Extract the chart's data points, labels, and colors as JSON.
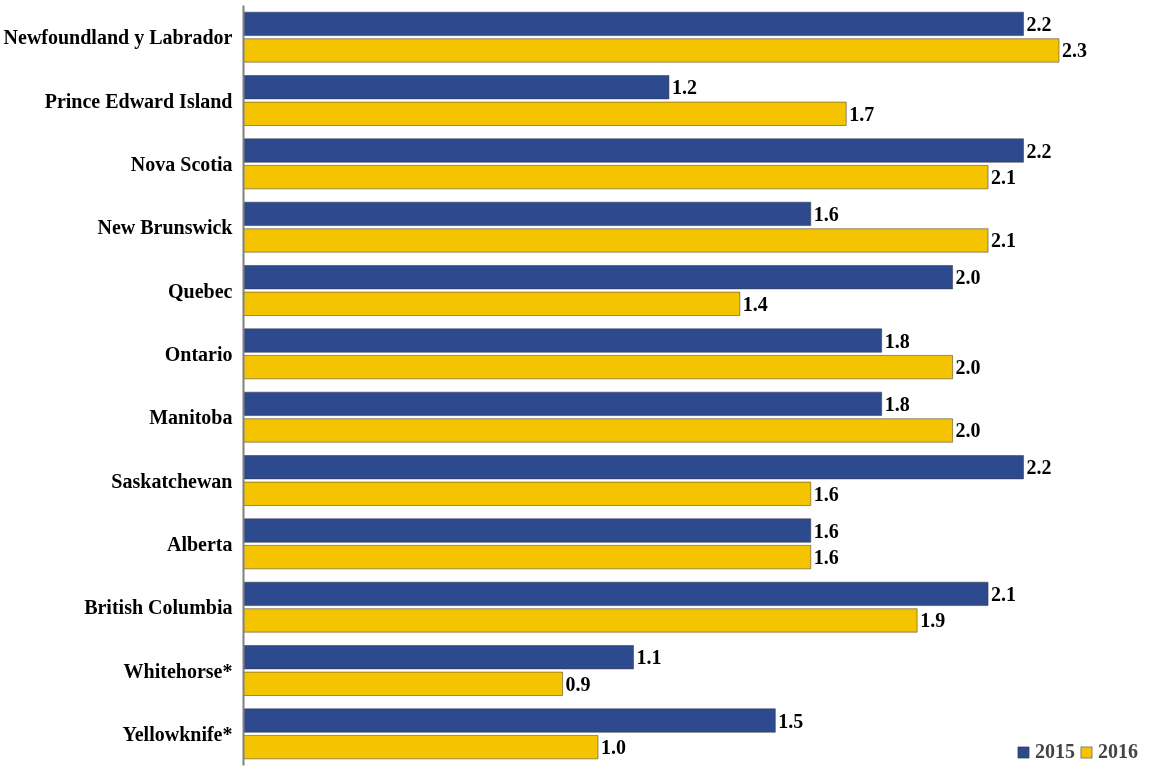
{
  "chart_data": {
    "type": "bar",
    "orientation": "horizontal",
    "categories": [
      "Newfoundland y Labrador",
      "Prince Edward Island",
      "Nova Scotia",
      "New Brunswick",
      "Quebec",
      "Ontario",
      "Manitoba",
      "Saskatchewan",
      "Alberta",
      "British Columbia",
      "Whitehorse*",
      "Yellowknife*"
    ],
    "series": [
      {
        "name": "2015",
        "color": "#2e4a8f",
        "values": [
          2.2,
          1.2,
          2.2,
          1.6,
          2.0,
          1.8,
          1.8,
          2.2,
          1.6,
          2.1,
          1.1,
          1.5
        ],
        "value_labels": [
          "2.2",
          "1.2",
          "2.2",
          "1.6",
          "2.0",
          "1.8",
          "1.8",
          "2.2",
          "1.6",
          "2.1",
          "1.1",
          "1.5"
        ]
      },
      {
        "name": "2016",
        "color": "#f5c400",
        "values": [
          2.3,
          1.7,
          2.1,
          2.1,
          1.4,
          2.0,
          2.0,
          1.6,
          1.6,
          1.9,
          0.9,
          1.0
        ],
        "value_labels": [
          "2.3",
          "1.7",
          "2.1",
          "2.1",
          "1.4",
          "2.0",
          "2.0",
          "1.6",
          "1.6",
          "1.9",
          "0.9",
          "1.0"
        ]
      }
    ],
    "legend": "bottom right",
    "grid": false
  }
}
